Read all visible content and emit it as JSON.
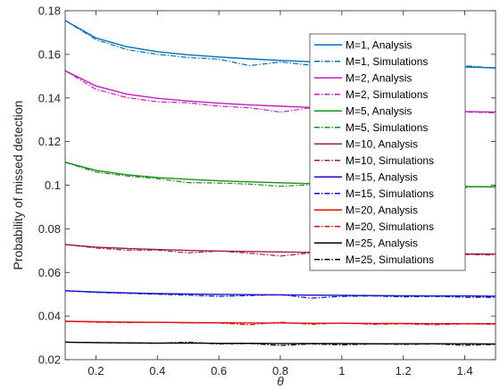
{
  "chart_data": {
    "type": "line",
    "xlabel": "θ",
    "ylabel": "Probability of missed detection",
    "xlim": [
      0.1,
      1.5
    ],
    "ylim": [
      0.02,
      0.18
    ],
    "xticks": [
      0.2,
      0.4,
      0.6,
      0.8,
      1.0,
      1.2,
      1.4
    ],
    "xtick_labels": [
      "0.2",
      "0.4",
      "0.6",
      "0.8",
      "1",
      "1.2",
      "1.4"
    ],
    "yticks": [
      0.02,
      0.04,
      0.06,
      0.08,
      0.1,
      0.12,
      0.14,
      0.16,
      0.18
    ],
    "ytick_labels": [
      "0.02",
      "0.04",
      "0.06",
      "0.08",
      "0.1",
      "0.12",
      "0.14",
      "0.16",
      "0.18"
    ],
    "grid": false,
    "legend_position": "top-right",
    "x": [
      0.1,
      0.2,
      0.3,
      0.4,
      0.5,
      0.6,
      0.7,
      0.8,
      0.9,
      1.0,
      1.1,
      1.2,
      1.3,
      1.4,
      1.5
    ],
    "series": [
      {
        "name": "M=1, Analysis",
        "color": "#0072BD",
        "dash": "solid",
        "values": [
          0.1755,
          0.1675,
          0.1635,
          0.1612,
          0.1598,
          0.1588,
          0.1579,
          0.1572,
          0.1566,
          0.156,
          0.1555,
          0.155,
          0.1546,
          0.1542,
          0.1538
        ]
      },
      {
        "name": "M=1, Simulations",
        "color": "#0072BD",
        "dash": "dashdot",
        "values": [
          0.1755,
          0.1668,
          0.1622,
          0.16,
          0.1585,
          0.1578,
          0.1548,
          0.1565,
          0.155,
          0.1555,
          0.154,
          0.1552,
          0.1542,
          0.1548,
          0.1536
        ]
      },
      {
        "name": "M=2, Analysis",
        "color": "#C020C0",
        "dash": "solid",
        "values": [
          0.1525,
          0.1455,
          0.1418,
          0.1398,
          0.1386,
          0.1376,
          0.1368,
          0.1362,
          0.1357,
          0.1352,
          0.1348,
          0.1344,
          0.1341,
          0.1338,
          0.1335
        ]
      },
      {
        "name": "M=2, Simulations",
        "color": "#C020C0",
        "dash": "dashdot",
        "values": [
          0.1525,
          0.144,
          0.1402,
          0.1382,
          0.1378,
          0.1362,
          0.1355,
          0.1335,
          0.1355,
          0.1342,
          0.1322,
          0.1338,
          0.133,
          0.1335,
          0.1332
        ]
      },
      {
        "name": "M=5, Analysis",
        "color": "#1A8F1A",
        "dash": "solid",
        "values": [
          0.1105,
          0.1068,
          0.1048,
          0.1035,
          0.1027,
          0.102,
          0.1015,
          0.1011,
          0.1007,
          0.1004,
          0.1001,
          0.0999,
          0.0996,
          0.0994,
          0.0992
        ]
      },
      {
        "name": "M=5, Simulations",
        "color": "#1A8F1A",
        "dash": "dashdot",
        "values": [
          0.1105,
          0.106,
          0.1042,
          0.103,
          0.1012,
          0.101,
          0.1005,
          0.0995,
          0.1002,
          0.098,
          0.0995,
          0.0985,
          0.0992,
          0.099,
          0.0995
        ]
      },
      {
        "name": "M=10, Analysis",
        "color": "#A0203A",
        "dash": "solid",
        "values": [
          0.0728,
          0.0716,
          0.071,
          0.0705,
          0.0701,
          0.0698,
          0.0696,
          0.0694,
          0.0692,
          0.069,
          0.0689,
          0.0687,
          0.0686,
          0.0685,
          0.0684
        ]
      },
      {
        "name": "M=10, Simulations",
        "color": "#A0203A",
        "dash": "dashdot",
        "values": [
          0.0728,
          0.0712,
          0.0702,
          0.0702,
          0.069,
          0.0698,
          0.0688,
          0.0675,
          0.069,
          0.068,
          0.0688,
          0.0672,
          0.0685,
          0.0682,
          0.068
        ]
      },
      {
        "name": "M=15, Analysis",
        "color": "#1010D0",
        "dash": "solid",
        "values": [
          0.0516,
          0.051,
          0.0506,
          0.0503,
          0.0501,
          0.0499,
          0.0498,
          0.0497,
          0.0496,
          0.0495,
          0.0494,
          0.0493,
          0.0492,
          0.0492,
          0.0491
        ]
      },
      {
        "name": "M=15, Simulations",
        "color": "#1010D0",
        "dash": "dashdot",
        "values": [
          0.0516,
          0.0508,
          0.0504,
          0.05,
          0.0496,
          0.049,
          0.0494,
          0.0498,
          0.0482,
          0.049,
          0.0492,
          0.0488,
          0.049,
          0.0486,
          0.0486
        ]
      },
      {
        "name": "M=20, Analysis",
        "color": "#E01010",
        "dash": "solid",
        "values": [
          0.0376,
          0.0374,
          0.0372,
          0.0371,
          0.037,
          0.0369,
          0.0368,
          0.0368,
          0.0367,
          0.0367,
          0.0366,
          0.0366,
          0.0365,
          0.0365,
          0.0365
        ]
      },
      {
        "name": "M=20, Simulations",
        "color": "#E01010",
        "dash": "dashdot",
        "values": [
          0.0376,
          0.0372,
          0.037,
          0.0372,
          0.0368,
          0.0368,
          0.036,
          0.0372,
          0.0362,
          0.0368,
          0.0362,
          0.0364,
          0.036,
          0.0364,
          0.0362
        ]
      },
      {
        "name": "M=25, Analysis",
        "color": "#000000",
        "dash": "solid",
        "values": [
          0.028,
          0.0278,
          0.0277,
          0.0276,
          0.0276,
          0.0275,
          0.0275,
          0.0274,
          0.0274,
          0.0274,
          0.0273,
          0.0273,
          0.0273,
          0.0273,
          0.0272
        ]
      },
      {
        "name": "M=25, Simulations",
        "color": "#000000",
        "dash": "dashdot",
        "values": [
          0.028,
          0.0278,
          0.0276,
          0.0275,
          0.028,
          0.0272,
          0.0274,
          0.0265,
          0.0272,
          0.0268,
          0.0272,
          0.027,
          0.0272,
          0.0266,
          0.027
        ]
      }
    ]
  }
}
